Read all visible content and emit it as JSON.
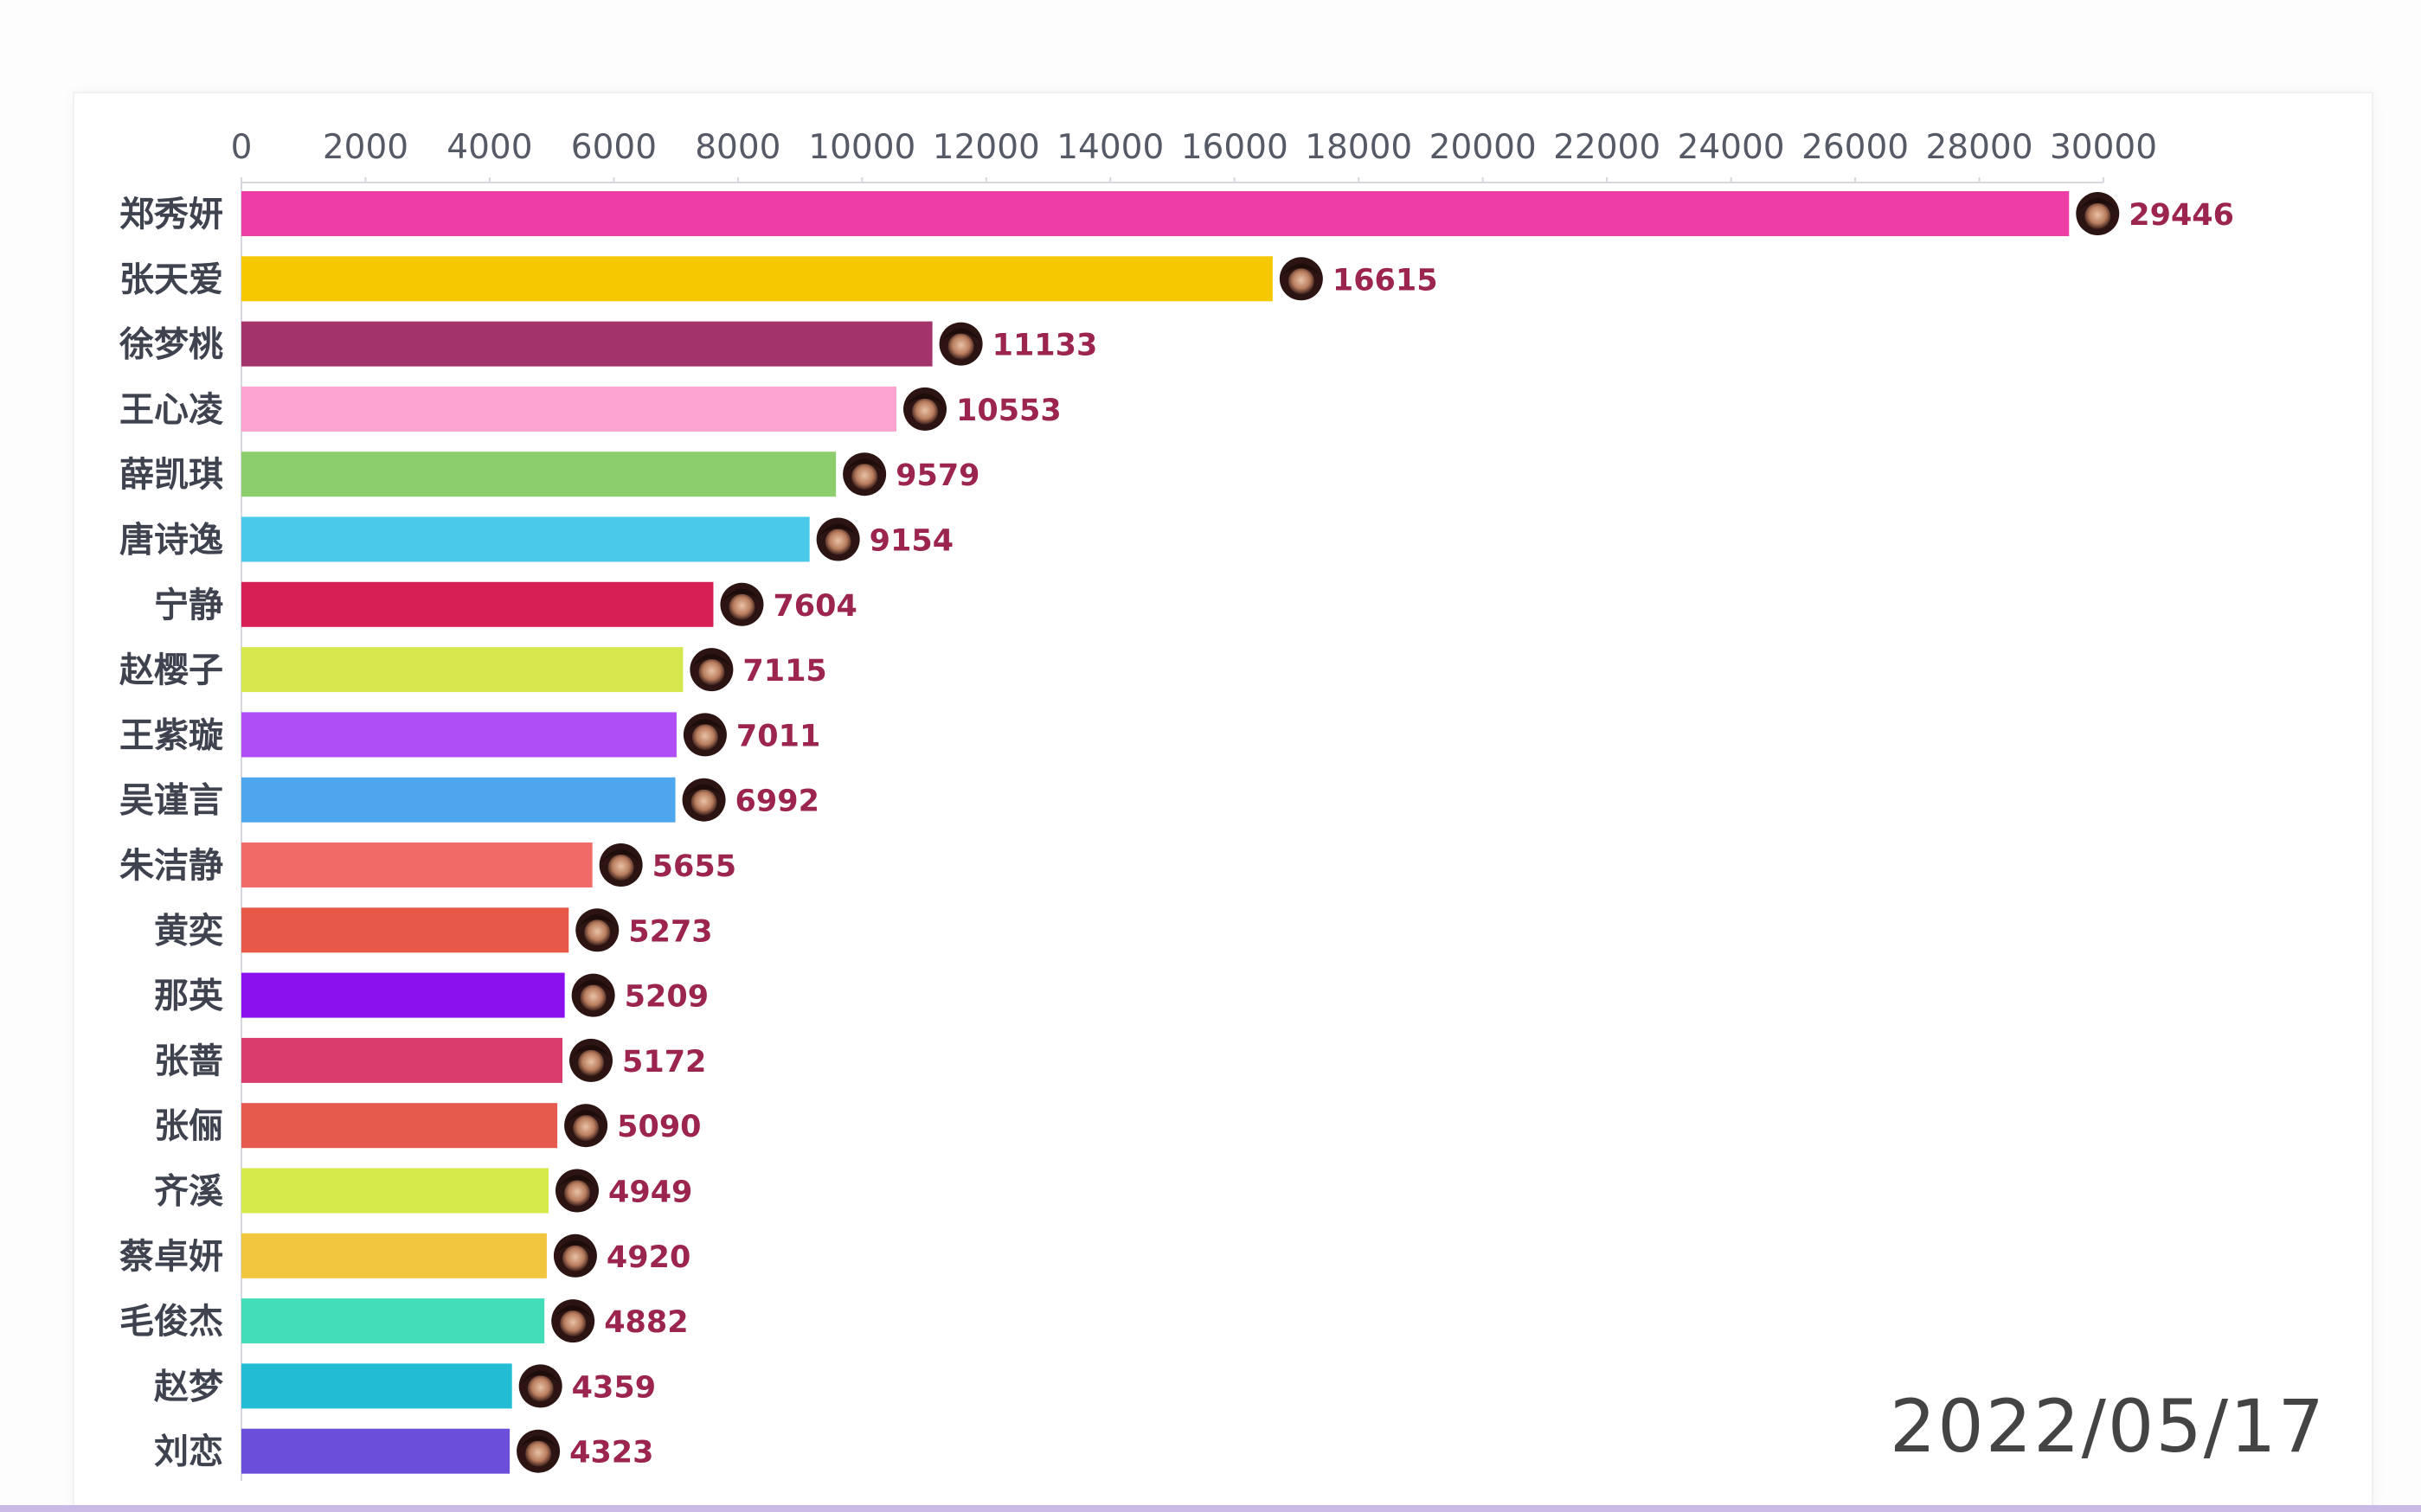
{
  "chart_data": {
    "type": "bar",
    "orientation": "horizontal",
    "categories": [
      "郑秀妍",
      "张天爱",
      "徐梦桃",
      "王心凌",
      "薛凯琪",
      "唐诗逸",
      "宁静",
      "赵樱子",
      "王紫璇",
      "吴谨言",
      "朱洁静",
      "黄奕",
      "那英",
      "张蔷",
      "张俪",
      "齐溪",
      "蔡卓妍",
      "毛俊杰",
      "赵梦",
      "刘恋"
    ],
    "values": [
      29446,
      16615,
      11133,
      10553,
      9579,
      9154,
      7604,
      7115,
      7011,
      6992,
      5655,
      5273,
      5209,
      5172,
      5090,
      4949,
      4920,
      4882,
      4359,
      4323
    ],
    "value_labels": [
      "29446",
      "16615",
      "11133",
      "10553",
      "9579",
      "9154",
      "7604",
      "7115",
      "7011",
      "6992",
      "5655",
      "5273",
      "5209",
      "5172",
      "5090",
      "4949",
      "4920",
      "4882",
      "4359",
      "4323"
    ],
    "colors": [
      "#ee3ea6",
      "#f5c800",
      "#a3346b",
      "#fca3cf",
      "#8ccd6e",
      "#4bc9ea",
      "#d81f53",
      "#d7e84e",
      "#b04ef5",
      "#4ea6ee",
      "#f26a68",
      "#e85847",
      "#8b10ee",
      "#d93c6d",
      "#e55a4c",
      "#d6ea4a",
      "#f2c53f",
      "#43ddba",
      "#22bcd4",
      "#6b4fdb"
    ],
    "xlim": [
      0,
      30000
    ],
    "x_ticks": [
      "0",
      "2000",
      "4000",
      "6000",
      "8000",
      "10000",
      "12000",
      "14000",
      "16000",
      "18000",
      "20000",
      "22000",
      "24000",
      "26000",
      "28000",
      "30000"
    ],
    "x_axis_position": "top",
    "grid": false,
    "legend": "none",
    "marker_icon": "avatar-icon",
    "date": "2022/05/17"
  }
}
